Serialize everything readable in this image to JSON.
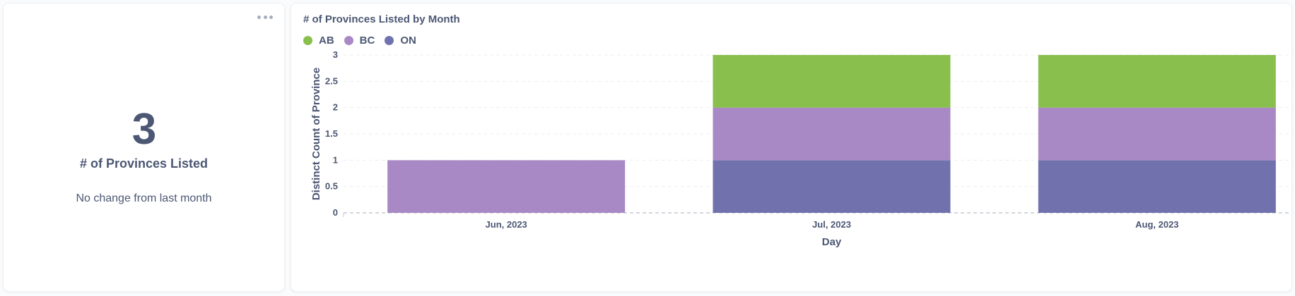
{
  "scalar_card": {
    "value": "3",
    "title": "# of Provinces Listed",
    "comparison": "No change from last month"
  },
  "chart_card": {
    "title": "# of Provinces Listed by Month",
    "legend": [
      {
        "name": "AB",
        "color": "#88bf4d"
      },
      {
        "name": "BC",
        "color": "#a989c5"
      },
      {
        "name": "ON",
        "color": "#7172ad"
      }
    ]
  },
  "chart_data": {
    "type": "bar",
    "stacked": true,
    "title": "# of Provinces Listed by Month",
    "xlabel": "Day",
    "ylabel": "Distinct Count of Province",
    "categories": [
      "Jun, 2023",
      "Jul, 2023",
      "Aug, 2023"
    ],
    "series": [
      {
        "name": "ON",
        "color": "#7172ad",
        "values": [
          0,
          1,
          1
        ]
      },
      {
        "name": "BC",
        "color": "#a989c5",
        "values": [
          1,
          1,
          1
        ]
      },
      {
        "name": "AB",
        "color": "#88bf4d",
        "values": [
          0,
          1,
          1
        ]
      }
    ],
    "yticks": [
      "0",
      "0.5",
      "1",
      "1.5",
      "2",
      "2.5",
      "3"
    ],
    "ylim": [
      0,
      3
    ],
    "grid": true,
    "legend_position": "top-left"
  }
}
